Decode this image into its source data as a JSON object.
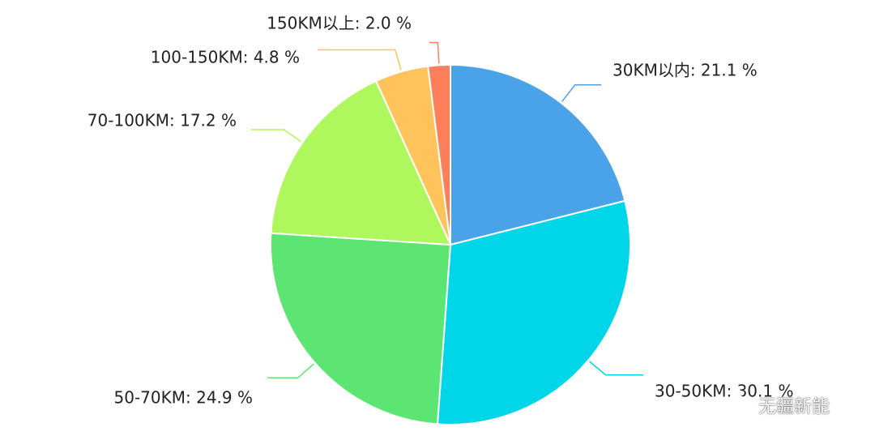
{
  "chart_data": {
    "type": "pie",
    "title": "",
    "series": [
      {
        "categories": [
          "30KM以内",
          "30-50KM",
          "50-70KM",
          "70-100KM",
          "100-150KM",
          "150KM以上"
        ],
        "values": [
          21.1,
          30.1,
          24.9,
          17.2,
          4.8,
          2.0
        ],
        "labels": [
          "30KM以内: 21.1 %",
          "30-50KM: 30.1 %",
          "50-70KM: 24.9 %",
          "70-100KM: 17.2 %",
          "100-150KM: 4.8 %",
          "150KM以上: 2.0 %"
        ]
      }
    ],
    "colors": [
      "#4aa3e8",
      "#00d6e8",
      "#5ce572",
      "#aef75c",
      "#ffc35c",
      "#ff7f5a"
    ],
    "start_angle": "12 o'clock",
    "direction": "clockwise",
    "legend": "none",
    "data_labels": "outside with leader lines"
  },
  "watermark": {
    "icon": "wechat-icon",
    "text": "无疆新能"
  }
}
